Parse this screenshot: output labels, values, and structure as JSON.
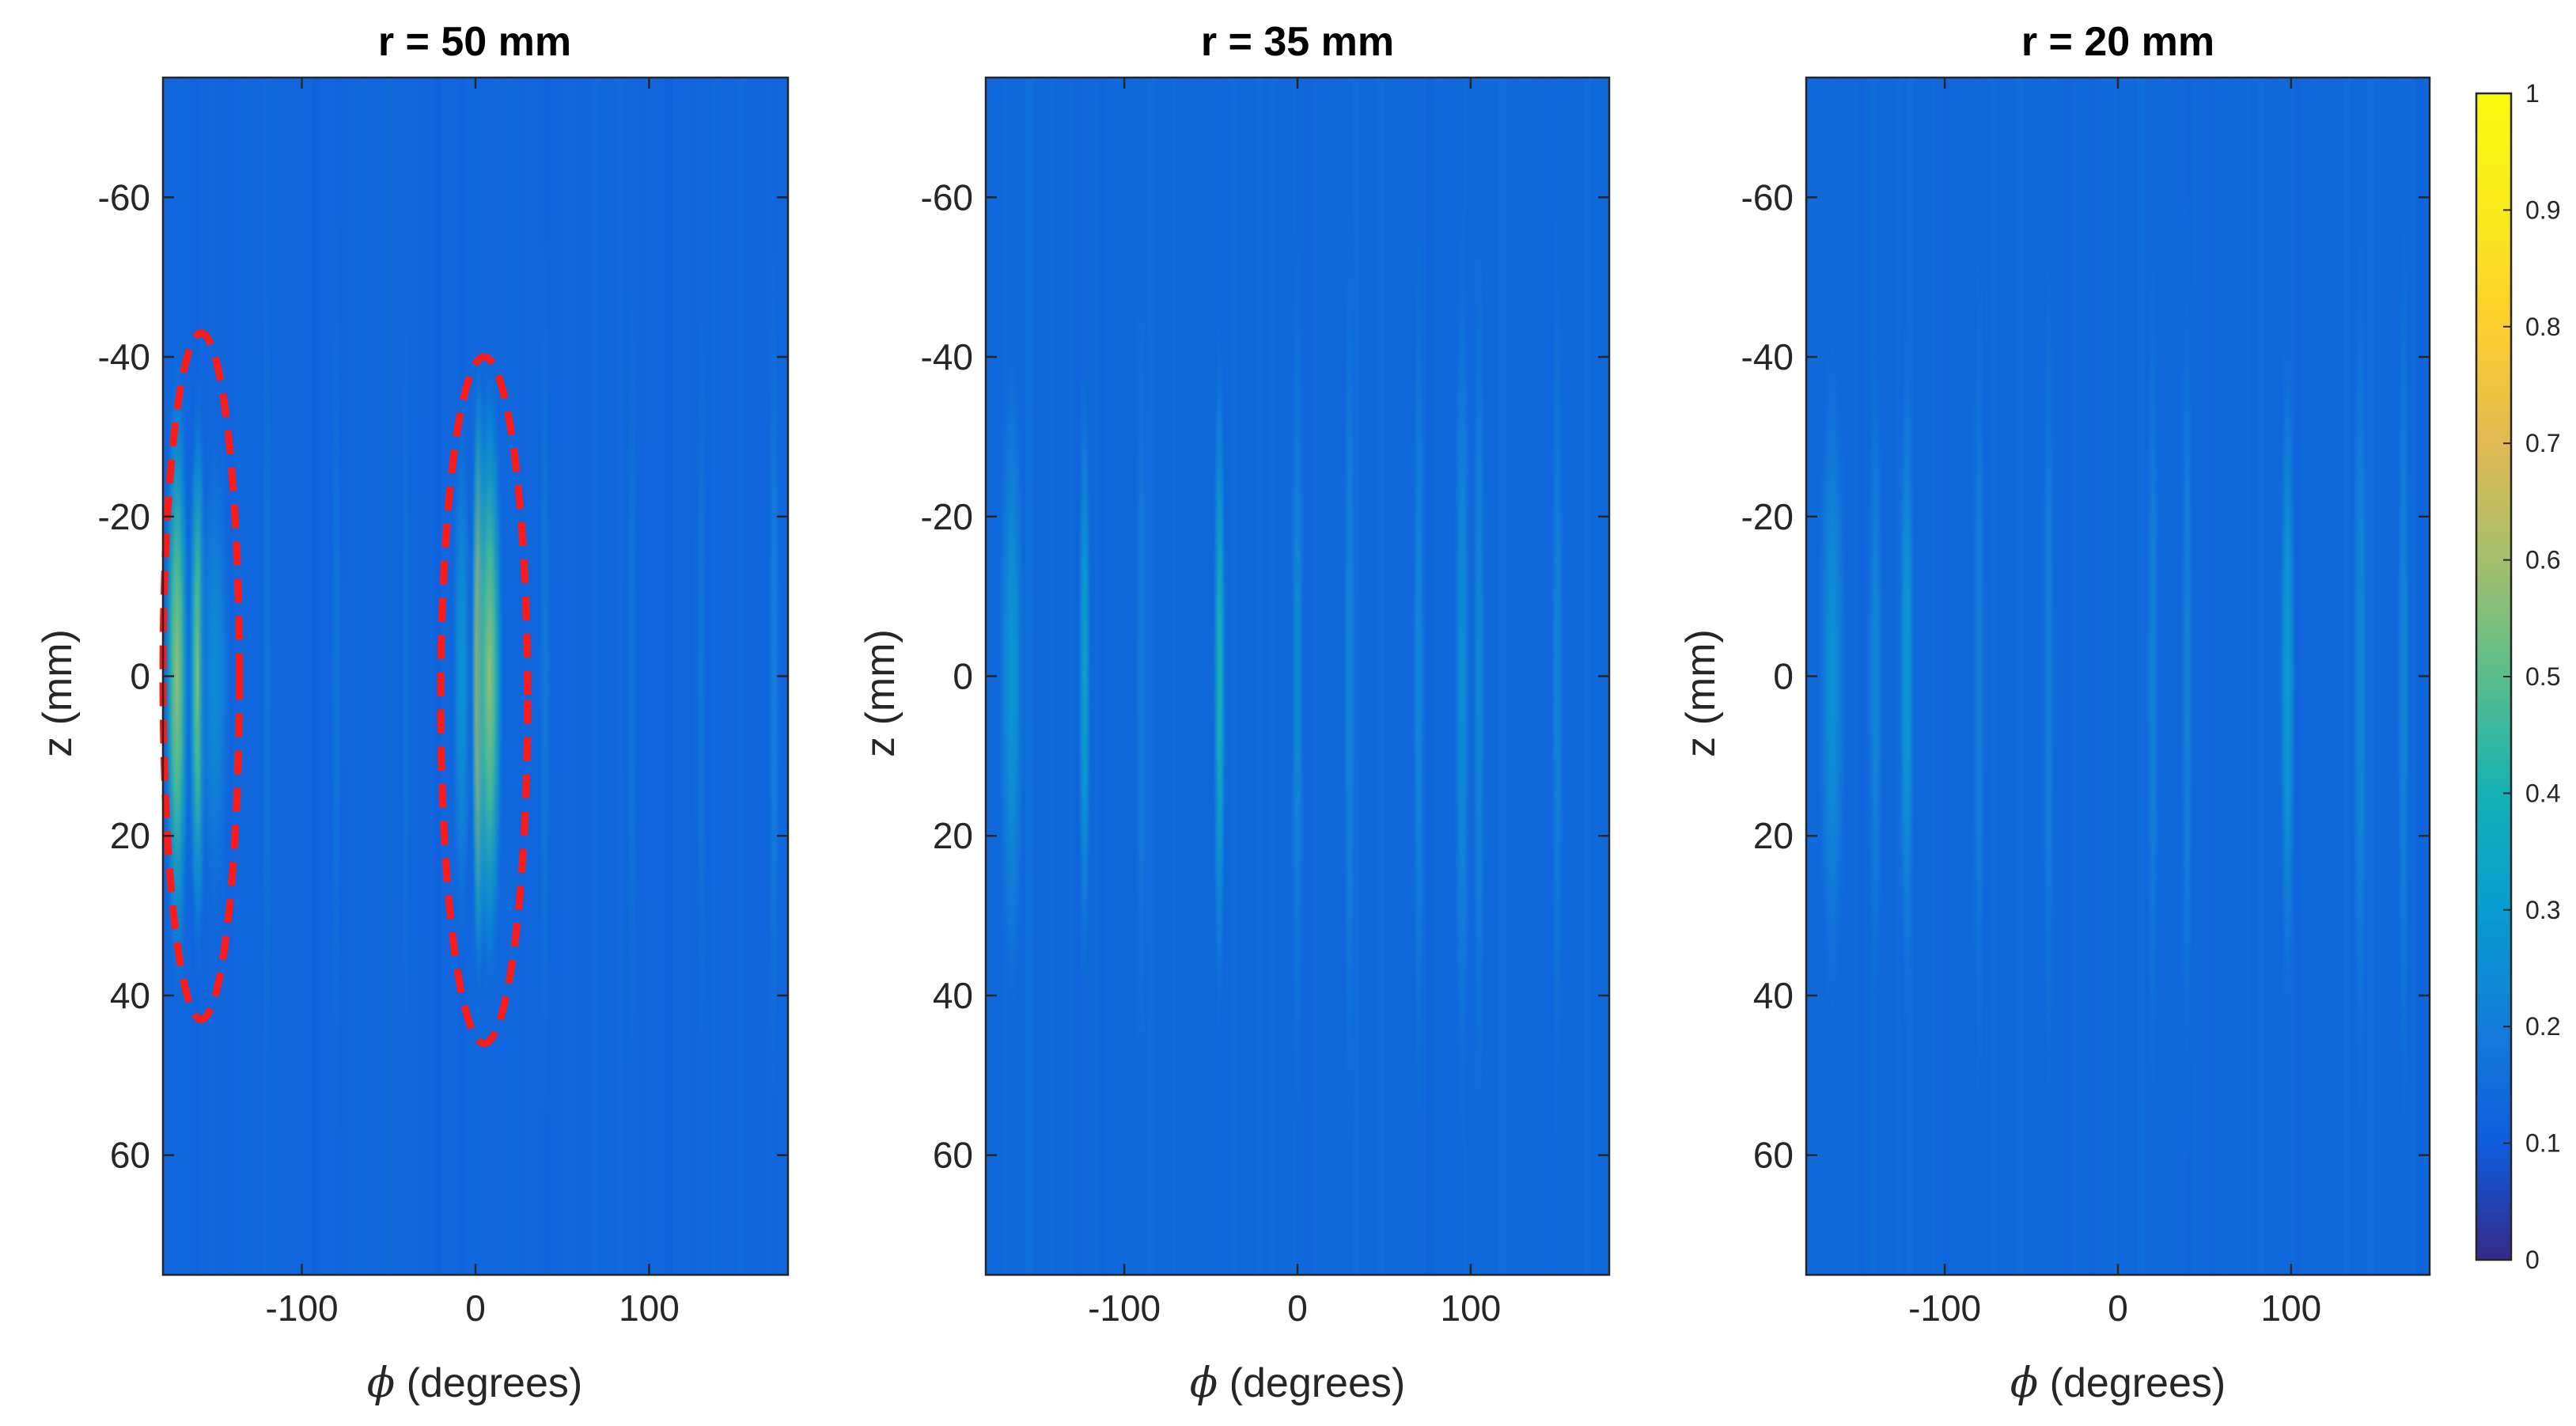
{
  "chart_data": [
    {
      "type": "heatmap",
      "title": "r = 50 mm",
      "xlabel_symbol": "ϕ",
      "xlabel": " (degrees)",
      "ylabel": "z (mm)",
      "xlim": [
        -180,
        180
      ],
      "ylim": [
        -75,
        75
      ],
      "y_reversed": true,
      "xticks": [
        -100,
        0,
        100
      ],
      "yticks": [
        -60,
        -40,
        -20,
        0,
        20,
        40,
        60
      ],
      "background_level": 0.13,
      "stripes": [
        {
          "phi": -172,
          "width": 8,
          "amp": 0.45,
          "z_half": 42
        },
        {
          "phi": -160,
          "width": 6,
          "amp": 0.42,
          "z_half": 38
        },
        {
          "phi": -150,
          "width": 10,
          "amp": 0.12,
          "z_half": 35
        },
        {
          "phi": -120,
          "width": 4,
          "amp": 0.05,
          "z_half": 60
        },
        {
          "phi": -80,
          "width": 4,
          "amp": 0.05,
          "z_half": 60
        },
        {
          "phi": -40,
          "width": 3,
          "amp": 0.04,
          "z_half": 60
        },
        {
          "phi": 2,
          "width": 5,
          "amp": 0.68,
          "z_half": 42
        },
        {
          "phi": 8,
          "width": 9,
          "amp": 0.45,
          "z_half": 42
        },
        {
          "phi": -8,
          "width": 6,
          "amp": 0.15,
          "z_half": 38
        },
        {
          "phi": 40,
          "width": 4,
          "amp": 0.06,
          "z_half": 60
        },
        {
          "phi": 90,
          "width": 4,
          "amp": 0.05,
          "z_half": 60
        },
        {
          "phi": 130,
          "width": 4,
          "amp": 0.05,
          "z_half": 60
        },
        {
          "phi": 172,
          "width": 4,
          "amp": 0.08,
          "z_half": 60
        }
      ],
      "annotations": [
        {
          "shape": "ellipse",
          "style": "red-dashed",
          "phi_center": -158,
          "z_center": 0,
          "phi_half": 22,
          "z_half": 43
        },
        {
          "shape": "ellipse",
          "style": "red-dashed",
          "phi_center": 5,
          "z_center": 3,
          "phi_half": 25,
          "z_half": 43
        }
      ]
    },
    {
      "type": "heatmap",
      "title": "r = 35 mm",
      "xlabel_symbol": "ϕ",
      "xlabel": " (degrees)",
      "ylabel": "z (mm)",
      "xlim": [
        -180,
        180
      ],
      "ylim": [
        -75,
        75
      ],
      "y_reversed": true,
      "xticks": [
        -100,
        0,
        100
      ],
      "yticks": [
        -60,
        -40,
        -20,
        0,
        20,
        40,
        60
      ],
      "background_level": 0.14,
      "stripes": [
        {
          "phi": -165,
          "width": 8,
          "amp": 0.15,
          "z_half": 45
        },
        {
          "phi": -123,
          "width": 4,
          "amp": 0.2,
          "z_half": 40
        },
        {
          "phi": -90,
          "width": 4,
          "amp": 0.06,
          "z_half": 60
        },
        {
          "phi": -45,
          "width": 4,
          "amp": 0.27,
          "z_half": 45
        },
        {
          "phi": 0,
          "width": 4,
          "amp": 0.1,
          "z_half": 60
        },
        {
          "phi": 30,
          "width": 4,
          "amp": 0.1,
          "z_half": 60
        },
        {
          "phi": 70,
          "width": 4,
          "amp": 0.1,
          "z_half": 60
        },
        {
          "phi": 95,
          "width": 5,
          "amp": 0.12,
          "z_half": 60
        },
        {
          "phi": 105,
          "width": 4,
          "amp": 0.1,
          "z_half": 60
        },
        {
          "phi": 150,
          "width": 4,
          "amp": 0.08,
          "z_half": 60
        }
      ],
      "annotations": []
    },
    {
      "type": "heatmap",
      "title": "r = 20 mm",
      "xlabel_symbol": "ϕ",
      "xlabel": " (degrees)",
      "ylabel": "z (mm)",
      "xlim": [
        -180,
        180
      ],
      "ylim": [
        -75,
        75
      ],
      "y_reversed": true,
      "xticks": [
        -100,
        0,
        100
      ],
      "yticks": [
        -60,
        -40,
        -20,
        0,
        20,
        40,
        60
      ],
      "background_level": 0.14,
      "stripes": [
        {
          "phi": -165,
          "width": 9,
          "amp": 0.13,
          "z_half": 45
        },
        {
          "phi": -140,
          "width": 5,
          "amp": 0.1,
          "z_half": 45
        },
        {
          "phi": -122,
          "width": 5,
          "amp": 0.17,
          "z_half": 45
        },
        {
          "phi": -80,
          "width": 4,
          "amp": 0.07,
          "z_half": 60
        },
        {
          "phi": -40,
          "width": 4,
          "amp": 0.07,
          "z_half": 60
        },
        {
          "phi": 20,
          "width": 4,
          "amp": 0.08,
          "z_half": 60
        },
        {
          "phi": 40,
          "width": 4,
          "amp": 0.08,
          "z_half": 60
        },
        {
          "phi": 98,
          "width": 5,
          "amp": 0.18,
          "z_half": 45
        },
        {
          "phi": 140,
          "width": 5,
          "amp": 0.1,
          "z_half": 60
        },
        {
          "phi": 165,
          "width": 4,
          "amp": 0.1,
          "z_half": 60
        }
      ],
      "annotations": []
    }
  ],
  "colorbar": {
    "colormap": "parula",
    "range": [
      0,
      1
    ],
    "ticks": [
      "0",
      "0.1",
      "0.2",
      "0.3",
      "0.4",
      "0.5",
      "0.6",
      "0.7",
      "0.8",
      "0.9",
      "1"
    ]
  },
  "colors": {
    "annotation": "#ff1a1a",
    "axis": "#262626"
  }
}
